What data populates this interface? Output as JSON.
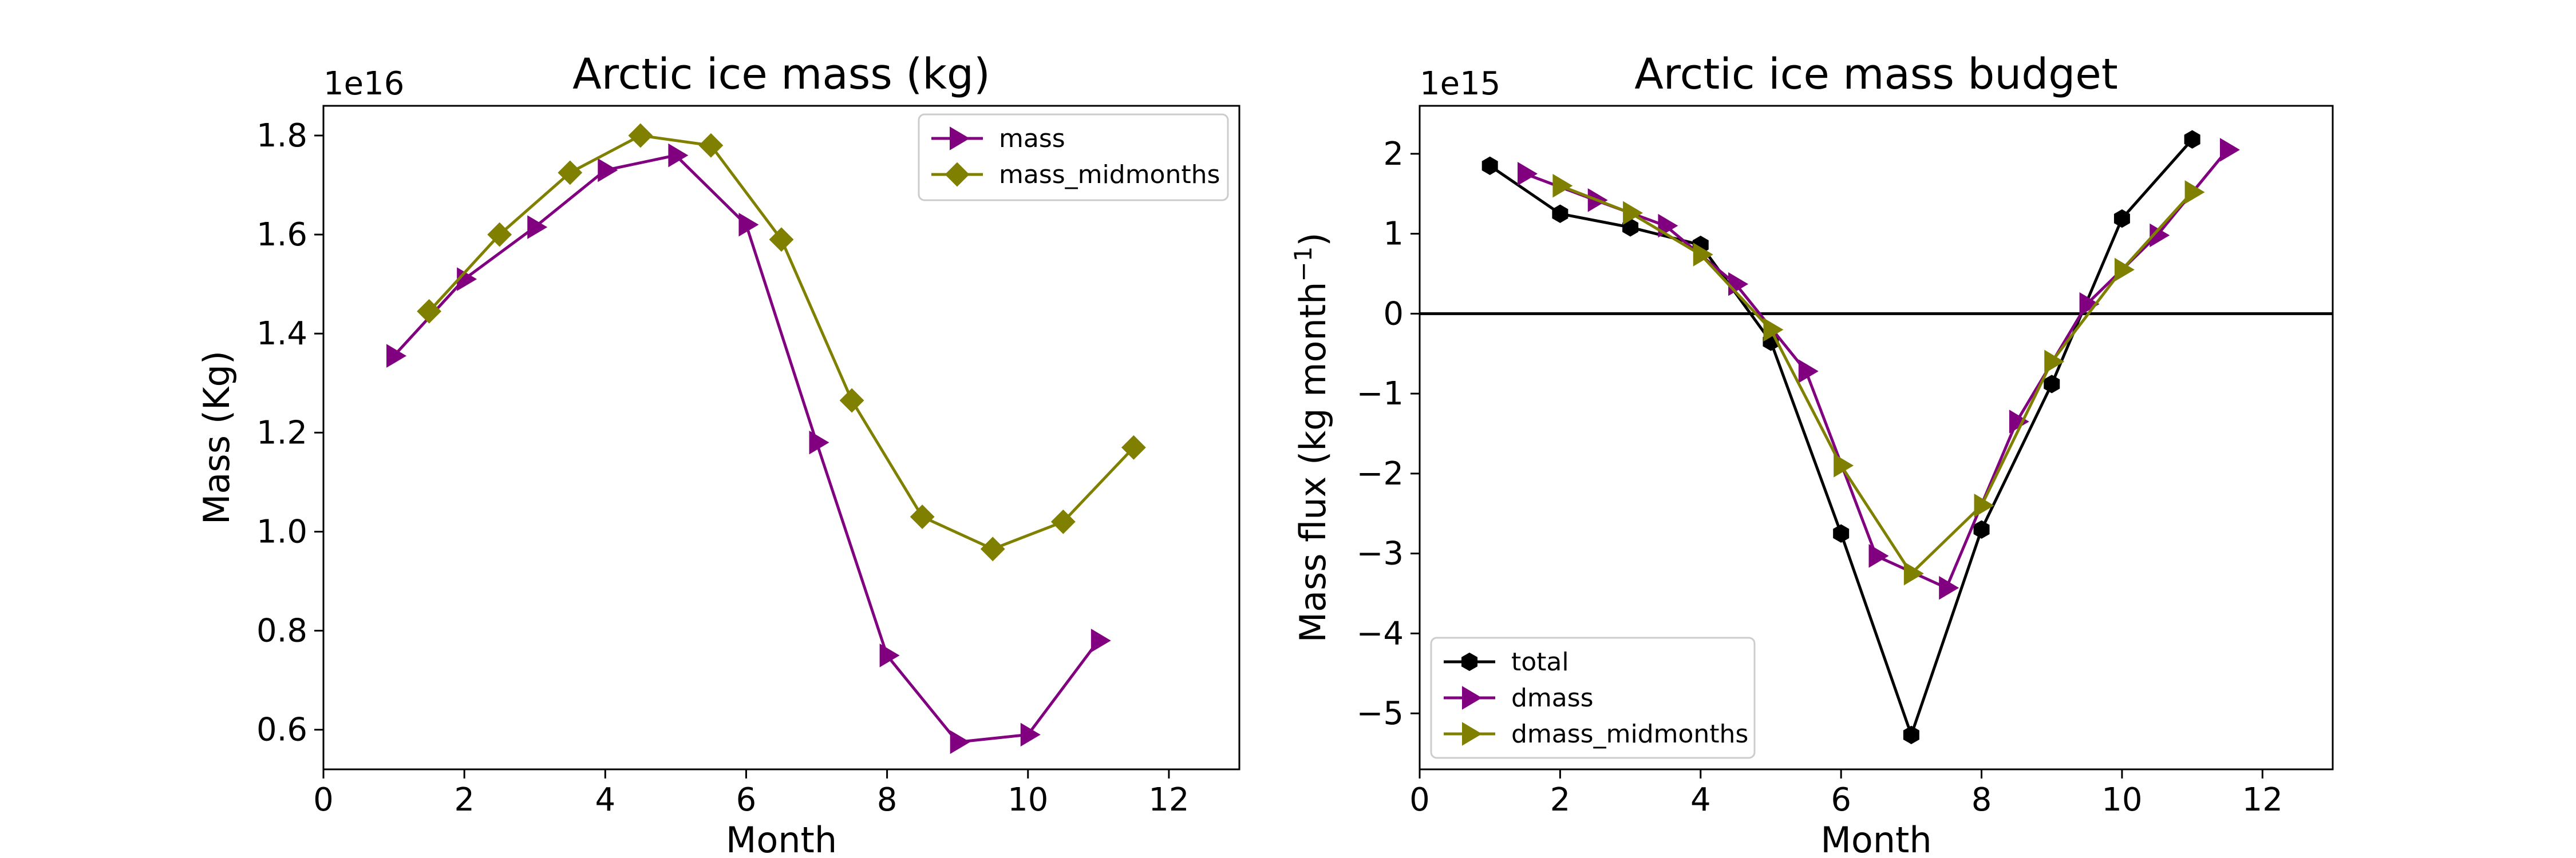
{
  "chart_data": [
    {
      "type": "line",
      "title": "Arctic ice mass (kg)",
      "xlabel": "Month",
      "ylabel": "Mass (Kg)",
      "y_offset_label": "1e16",
      "xlim": [
        0,
        13
      ],
      "ylim": [
        0.52,
        1.86
      ],
      "x_ticks": [
        0,
        2,
        4,
        6,
        8,
        10,
        12
      ],
      "x_tick_labels": [
        "0",
        "2",
        "4",
        "6",
        "8",
        "10",
        "12"
      ],
      "y_ticks": [
        0.6,
        0.8,
        1.0,
        1.2,
        1.4,
        1.6,
        1.8
      ],
      "y_tick_labels": [
        "0.6",
        "0.8",
        "1.0",
        "1.2",
        "1.4",
        "1.6",
        "1.8"
      ],
      "legend_position": "top-right",
      "grid": false,
      "series": [
        {
          "name": "mass",
          "color": "#800080",
          "marker": "triangle-right",
          "x": [
            1,
            2,
            3,
            4,
            5,
            6,
            7,
            8,
            9,
            10,
            11
          ],
          "y": [
            1.355,
            1.51,
            1.615,
            1.73,
            1.76,
            1.62,
            1.18,
            0.75,
            0.575,
            0.59,
            0.78
          ]
        },
        {
          "name": "mass_midmonths",
          "color": "#808000",
          "marker": "diamond",
          "x": [
            1.5,
            2.5,
            3.5,
            4.5,
            5.5,
            6.5,
            7.5,
            8.5,
            9.5,
            10.5,
            11.5
          ],
          "y": [
            1.445,
            1.6,
            1.725,
            1.8,
            1.78,
            1.59,
            1.265,
            1.03,
            0.965,
            1.02,
            1.17
          ]
        }
      ]
    },
    {
      "type": "line",
      "title": "Arctic ice mass budget",
      "xlabel": "Month",
      "ylabel_main": "Mass flux (kg month",
      "ylabel_sup": "−1",
      "ylabel_tail": ")",
      "y_offset_label": "1e15",
      "xlim": [
        0,
        13
      ],
      "ylim": [
        -5.7,
        2.6
      ],
      "x_ticks": [
        0,
        2,
        4,
        6,
        8,
        10,
        12
      ],
      "x_tick_labels": [
        "0",
        "2",
        "4",
        "6",
        "8",
        "10",
        "12"
      ],
      "y_ticks": [
        -5,
        -4,
        -3,
        -2,
        -1,
        0,
        1,
        2
      ],
      "y_tick_labels": [
        "−5",
        "−4",
        "−3",
        "−2",
        "−1",
        "0",
        "1",
        "2"
      ],
      "zero_line": true,
      "legend_position": "bottom-left",
      "grid": false,
      "series": [
        {
          "name": "total",
          "color": "#000000",
          "marker": "hexagon",
          "x": [
            1,
            2,
            3,
            4,
            5,
            6,
            7,
            8,
            9,
            10,
            11
          ],
          "y": [
            1.85,
            1.25,
            1.08,
            0.86,
            -0.35,
            -2.75,
            -5.27,
            -2.7,
            -0.88,
            1.19,
            2.18
          ]
        },
        {
          "name": "dmass",
          "color": "#800080",
          "marker": "triangle-right",
          "x": [
            1.5,
            2.5,
            3.5,
            4.5,
            5.5,
            6.5,
            7.5,
            8.5,
            9.5,
            10.5,
            11.5
          ],
          "y": [
            1.75,
            1.42,
            1.1,
            0.37,
            -0.72,
            -3.03,
            -3.43,
            -1.35,
            0.12,
            0.98,
            2.05
          ]
        },
        {
          "name": "dmass_midmonths",
          "color": "#808000",
          "marker": "triangle-right",
          "x": [
            2,
            3,
            4,
            5,
            6,
            7,
            8,
            9,
            10,
            11
          ],
          "y": [
            1.6,
            1.26,
            0.74,
            -0.2,
            -1.9,
            -3.25,
            -2.4,
            -0.6,
            0.55,
            1.52
          ]
        }
      ]
    }
  ]
}
